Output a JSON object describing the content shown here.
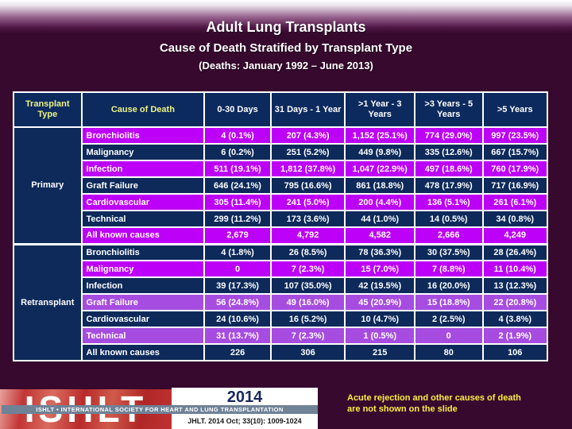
{
  "slide": {
    "title": "Adult Lung Transplants",
    "subtitle": "Cause of Death Stratified by Transplant Type",
    "date_range": "(Deaths: January 1992 – June 2013)",
    "note_line1": "Acute rejection and other causes of death",
    "note_line2": "are not shown on the slide"
  },
  "table": {
    "col_headers": [
      "Transplant Type",
      "Cause of Death",
      "0-30 Days",
      "31 Days - 1 Year",
      ">1 Year - 3 Years",
      ">3 Years - 5 Years",
      ">5 Years"
    ],
    "groups": [
      {
        "type": "Primary",
        "rows": [
          {
            "cause": "Bronchiolitis",
            "variant": "magenta",
            "values": [
              "4 (0.1%)",
              "207 (4.3%)",
              "1,152 (25.1%)",
              "774 (29.0%)",
              "997 (23.5%)"
            ]
          },
          {
            "cause": "Malignancy",
            "variant": "navy",
            "values": [
              "6 (0.2%)",
              "251 (5.2%)",
              "449 (9.8%)",
              "335 (12.6%)",
              "667 (15.7%)"
            ]
          },
          {
            "cause": "Infection",
            "variant": "magenta",
            "values": [
              "511 (19.1%)",
              "1,812 (37.8%)",
              "1,047 (22.9%)",
              "497 (18.6%)",
              "760 (17.9%)"
            ]
          },
          {
            "cause": "Graft Failure",
            "variant": "navy",
            "values": [
              "646 (24.1%)",
              "795 (16.6%)",
              "861 (18.8%)",
              "478 (17.9%)",
              "717 (16.9%)"
            ]
          },
          {
            "cause": "Cardiovascular",
            "variant": "magenta",
            "values": [
              "305 (11.4%)",
              "241 (5.0%)",
              "200 (4.4%)",
              "136 (5.1%)",
              "261 (6.1%)"
            ]
          },
          {
            "cause": "Technical",
            "variant": "navy",
            "values": [
              "299 (11.2%)",
              "173 (3.6%)",
              "44 (1.0%)",
              "14 (0.5%)",
              "34 (0.8%)"
            ]
          },
          {
            "cause": "All known causes",
            "variant": "magenta",
            "values": [
              "2,679",
              "4,792",
              "4,582",
              "2,666",
              "4,249"
            ]
          }
        ]
      },
      {
        "type": "Retransplant",
        "rows": [
          {
            "cause": "Bronchiolitis",
            "variant": "navy",
            "values": [
              "4 (1.8%)",
              "26 (8.5%)",
              "78 (36.3%)",
              "30 (37.5%)",
              "28 (26.4%)"
            ]
          },
          {
            "cause": "Malignancy",
            "variant": "magenta",
            "values": [
              "0",
              "7 (2.3%)",
              "15 (7.0%)",
              "7 (8.8%)",
              "11 (10.4%)"
            ]
          },
          {
            "cause": "Infection",
            "variant": "navy",
            "values": [
              "39 (17.3%)",
              "107 (35.0%)",
              "42 (19.5%)",
              "16 (20.0%)",
              "13 (12.3%)"
            ]
          },
          {
            "cause": "Graft Failure",
            "variant": "violet",
            "values": [
              "56 (24.8%)",
              "49 (16.0%)",
              "45 (20.9%)",
              "15 (18.8%)",
              "22 (20.8%)"
            ]
          },
          {
            "cause": "Cardiovascular",
            "variant": "navy",
            "values": [
              "24 (10.6%)",
              "16 (5.2%)",
              "10 (4.7%)",
              "2 (2.5%)",
              "4 (3.8%)"
            ]
          },
          {
            "cause": "Technical",
            "variant": "violet",
            "values": [
              "31 (13.7%)",
              "7 (2.3%)",
              "1 (0.5%)",
              "0",
              "2 (1.9%)"
            ]
          },
          {
            "cause": "All known causes",
            "variant": "navy",
            "values": [
              "226",
              "306",
              "215",
              "80",
              "106"
            ]
          }
        ]
      }
    ]
  },
  "footer": {
    "logo_text": "ISHLT",
    "logo_strip": "ISHLT • INTERNATIONAL SOCIETY FOR HEART AND LUNG TRANSPLANTATION",
    "year": "2014",
    "citation": "JHLT. 2014 Oct; 33(10): 1009-1024"
  },
  "colors": {
    "background": "#37092e",
    "row_navy": "#0d2a5a",
    "row_magenta": "#bd00f8",
    "row_violet": "#a64ce0",
    "header_navy": "#0c2a5e",
    "header_yellow": "#eef283",
    "table_border": "#ffffff",
    "note_yellow": "#fdee3f",
    "logo_red": "#c23030",
    "strip_blue_gray": "#6f8296",
    "year_navy": "#17265e"
  }
}
